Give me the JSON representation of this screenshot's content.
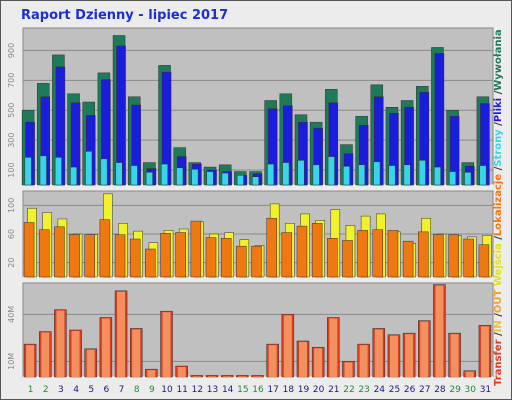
{
  "page": {
    "title": "Raport Dzienny -  lipiec 2017"
  },
  "chart_data": [
    {
      "type": "bar",
      "name": "visits-panel",
      "categories": [
        "1",
        "2",
        "3",
        "4",
        "5",
        "6",
        "7",
        "8",
        "9",
        "10",
        "11",
        "12",
        "13",
        "14",
        "15",
        "16",
        "17",
        "18",
        "19",
        "20",
        "21",
        "22",
        "23",
        "24",
        "25",
        "26",
        "27",
        "28",
        "29",
        "30",
        "31"
      ],
      "weekend_days": [
        "1",
        "2",
        "8",
        "9",
        "15",
        "16",
        "22",
        "23",
        "29",
        "30"
      ],
      "ylim": [
        0,
        1050
      ],
      "ytick_labels": [
        {
          "value": 100,
          "label": "100"
        },
        {
          "value": 300,
          "label": "300"
        },
        {
          "value": 500,
          "label": "500"
        },
        {
          "value": 700,
          "label": "700"
        },
        {
          "value": 900,
          "label": "900"
        }
      ],
      "series": [
        {
          "name": "Wywołania",
          "color": "#1f7a5a",
          "values": [
            500,
            680,
            870,
            610,
            555,
            750,
            1000,
            590,
            150,
            800,
            250,
            150,
            120,
            135,
            90,
            90,
            565,
            610,
            470,
            420,
            640,
            270,
            460,
            670,
            520,
            565,
            660,
            920,
            500,
            150,
            590
          ]
        },
        {
          "name": "Pliki",
          "color": "#1c1cdc",
          "values": [
            420,
            590,
            790,
            550,
            465,
            705,
            930,
            535,
            110,
            755,
            190,
            140,
            100,
            90,
            65,
            75,
            510,
            530,
            420,
            380,
            550,
            210,
            400,
            590,
            480,
            520,
            620,
            880,
            460,
            125,
            545
          ]
        },
        {
          "name": "Strony",
          "color": "#38d4ea",
          "values": [
            185,
            195,
            185,
            120,
            225,
            175,
            150,
            130,
            85,
            140,
            115,
            105,
            90,
            80,
            65,
            55,
            140,
            150,
            165,
            135,
            190,
            125,
            135,
            155,
            130,
            135,
            165,
            120,
            90,
            85,
            130
          ]
        }
      ]
    },
    {
      "type": "bar",
      "name": "locations-panel",
      "categories": [
        "1",
        "2",
        "3",
        "4",
        "5",
        "6",
        "7",
        "8",
        "9",
        "10",
        "11",
        "12",
        "13",
        "14",
        "15",
        "16",
        "17",
        "18",
        "19",
        "20",
        "21",
        "22",
        "23",
        "24",
        "25",
        "26",
        "27",
        "28",
        "29",
        "30",
        "31"
      ],
      "ylim": [
        0,
        120
      ],
      "ytick_labels": [
        {
          "value": 20,
          "label": "20"
        },
        {
          "value": 60,
          "label": "60"
        },
        {
          "value": 100,
          "label": "100"
        }
      ],
      "series": [
        {
          "name": "Wejścia",
          "color": "#f2f22a",
          "values": [
            96,
            90,
            81,
            60,
            59,
            116,
            75,
            64,
            48,
            65,
            67,
            77,
            60,
            62,
            52,
            44,
            102,
            75,
            88,
            79,
            94,
            72,
            85,
            88,
            63,
            47,
            82,
            60,
            58,
            56,
            58
          ]
        },
        {
          "name": "Lokalizacje",
          "color": "#f07810",
          "values": [
            76,
            66,
            70,
            59,
            59,
            80,
            59,
            53,
            39,
            61,
            62,
            78,
            55,
            54,
            43,
            43,
            82,
            62,
            71,
            75,
            54,
            51,
            65,
            66,
            65,
            50,
            63,
            59,
            59,
            53,
            45
          ]
        }
      ]
    },
    {
      "type": "bar",
      "name": "transfer-panel",
      "categories": [
        "1",
        "2",
        "3",
        "4",
        "5",
        "6",
        "7",
        "8",
        "9",
        "10",
        "11",
        "12",
        "13",
        "14",
        "15",
        "16",
        "17",
        "18",
        "19",
        "20",
        "21",
        "22",
        "23",
        "24",
        "25",
        "26",
        "27",
        "28",
        "29",
        "30",
        "31"
      ],
      "ylim": [
        0,
        60
      ],
      "ytick_labels": [
        {
          "value": 10,
          "label": "10M"
        },
        {
          "value": 40,
          "label": "40M"
        }
      ],
      "series": [
        {
          "name": "Transfer",
          "color": "#e03a1f",
          "values": [
            21,
            29,
            43,
            30,
            18,
            38,
            55,
            31,
            5,
            42,
            7,
            1,
            1,
            1,
            1,
            1,
            21,
            40,
            23,
            19,
            38,
            10,
            21,
            31,
            27,
            28,
            36,
            59,
            28,
            4,
            33
          ]
        }
      ]
    }
  ],
  "legend_right": [
    {
      "text": "Wywołania",
      "color": "#1f7a5a"
    },
    {
      "text": "/",
      "color": "#333333"
    },
    {
      "text": "Pliki",
      "color": "#1c1cdc"
    },
    {
      "text": "/",
      "color": "#333333"
    },
    {
      "text": "Strony",
      "color": "#38d4ea"
    },
    {
      "text": "/",
      "color": "#333333"
    },
    {
      "text": "Lokalizacje",
      "color": "#f07810"
    },
    {
      "text": "/",
      "color": "#333333"
    },
    {
      "text": "Wejścia",
      "color": "#e0e020"
    },
    {
      "text": "OUT",
      "color": "#f0a030"
    },
    {
      "text": "/",
      "color": "#333333"
    },
    {
      "text": "IN",
      "color": "#e8c040"
    },
    {
      "text": "/",
      "color": "#333333"
    },
    {
      "text": "Transfer",
      "color": "#e03a1f"
    }
  ],
  "colors": {
    "plot_bg": "#c0c0c0",
    "grid": "#8a8a8a",
    "weekday_label": "#1a1a7a",
    "weekend_label": "#1f8a3a",
    "pages_outline": "#2a80a0"
  }
}
